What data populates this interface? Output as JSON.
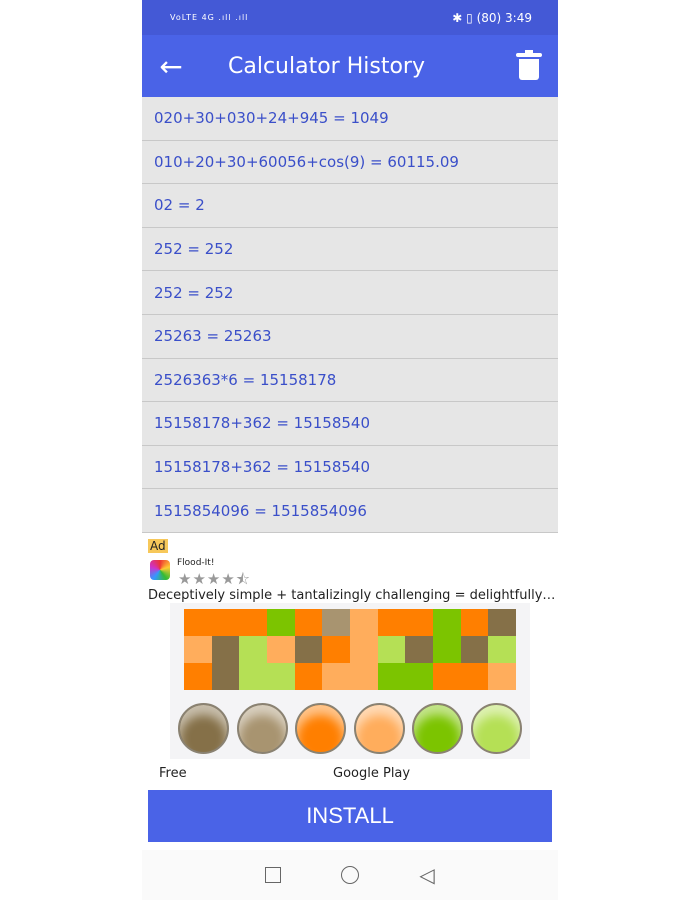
{
  "status_bar": {
    "left": "VoLTE 4G .ıll .ıll",
    "battery": "80",
    "time": "3:49"
  },
  "header": {
    "title": "Calculator History",
    "back_icon": "arrow-left-icon",
    "delete_icon": "trash-icon"
  },
  "history": [
    "020+30+030+24+945 = 1049",
    "010+20+30+60056+cos(9) = 60115.09",
    "02 = 2",
    "252 = 252",
    "252 = 252",
    "25263 = 25263",
    "2526363*6 = 15158178",
    "15158178+362 = 15158540",
    "15158178+362 = 15158540",
    "1515854096 = 1515854096"
  ],
  "ad": {
    "tag": "Ad",
    "app_name": "Flood-It!",
    "rating": 4.5,
    "stars": "★★★★⯪",
    "description": "Deceptively simple + tantalizingly challenging = delightfully…",
    "price": "Free",
    "store": "Google Play",
    "install_label": "INSTALL",
    "palette": {
      "O": "#ff7f00",
      "L": "#ffad5c",
      "G": "#7cc400",
      "Y": "#b5e055",
      "B": "#857048",
      "T": "#a89470"
    },
    "grid": [
      "OOOGOTLOOGOB",
      "LBYLBOLYBGBY",
      "OBYYOLLGGOOL"
    ],
    "balls": [
      "#857048",
      "#a89470",
      "#ff7f00",
      "#ffad5c",
      "#7cc400",
      "#b5e055"
    ]
  },
  "colors": {
    "primary": "#4a63e7",
    "status": "#4459d6",
    "item_text": "#3a4fc9"
  }
}
